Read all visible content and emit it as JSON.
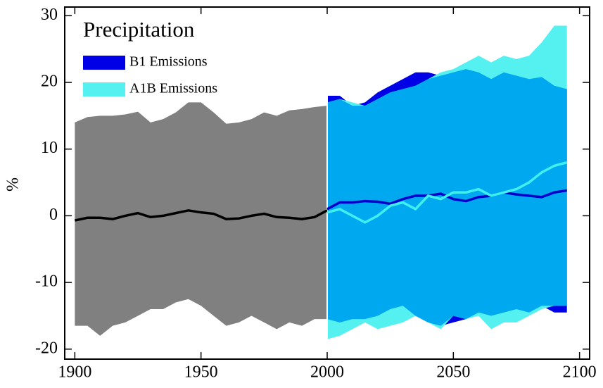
{
  "chart_data": {
    "type": "band",
    "title": "Precipitation",
    "y_label": "%",
    "xlim": [
      1896,
      2104
    ],
    "ylim": [
      -21.5,
      31.3
    ],
    "xticks": [
      1900,
      1950,
      2000,
      2050,
      2100
    ],
    "yticks": [
      -20,
      -10,
      0,
      10,
      20,
      30
    ],
    "overlap_color": "#00a8f0",
    "series": [
      {
        "color": "#808080",
        "line_color": "#000000",
        "x": [
          1900,
          1905,
          1910,
          1915,
          1920,
          1925,
          1930,
          1935,
          1940,
          1945,
          1950,
          1955,
          1960,
          1965,
          1970,
          1975,
          1980,
          1985,
          1990,
          1995,
          2000
        ],
        "upper": [
          14,
          14.8,
          15,
          15,
          15.2,
          15.6,
          14,
          14.5,
          15.5,
          17,
          17,
          15.5,
          13.8,
          14,
          14.5,
          15.5,
          15,
          15.8,
          16,
          16.3,
          16.5
        ],
        "lower": [
          -16.5,
          -16.5,
          -18,
          -16.5,
          -16,
          -15,
          -14,
          -14,
          -13,
          -12.5,
          -13.5,
          -15,
          -16.5,
          -16,
          -15,
          -16,
          -17,
          -16,
          -16.5,
          -15.5,
          -15.5
        ],
        "values": [
          -0.7,
          -0.3,
          -0.3,
          -0.5,
          0,
          0.4,
          -0.2,
          0,
          0.4,
          0.8,
          0.5,
          0.3,
          -0.5,
          -0.4,
          0,
          0.3,
          -0.2,
          -0.3,
          -0.5,
          -0.2,
          0.8
        ]
      },
      {
        "name": "B1 Emissions",
        "color": "#0000e6",
        "line_color": "#0000cc",
        "x": [
          2000,
          2005,
          2010,
          2015,
          2020,
          2025,
          2030,
          2035,
          2040,
          2045,
          2050,
          2055,
          2060,
          2065,
          2070,
          2075,
          2080,
          2085,
          2090,
          2095
        ],
        "upper": [
          18,
          18,
          16.5,
          17,
          18.5,
          19.5,
          20.5,
          21.5,
          21.5,
          21,
          21.5,
          22,
          21.5,
          20.5,
          21.5,
          21,
          20.5,
          20.8,
          19.5,
          19
        ],
        "lower": [
          -15.5,
          -16,
          -15.5,
          -15.5,
          -15,
          -14,
          -13.5,
          -15,
          -16,
          -16.5,
          -16,
          -15.5,
          -14.5,
          -15,
          -14.5,
          -14,
          -14.5,
          -13.5,
          -14.5,
          -14.5
        ],
        "values": [
          1,
          2,
          2,
          2.2,
          2.1,
          1.8,
          2.5,
          3,
          3,
          3.3,
          2.5,
          2.2,
          2.8,
          3,
          3.5,
          3.2,
          3,
          2.8,
          3.5,
          3.8
        ]
      },
      {
        "name": "A1B Emissions",
        "color": "#55f0f0",
        "line_color": "#40f0f0",
        "x": [
          2000,
          2005,
          2010,
          2015,
          2020,
          2025,
          2030,
          2035,
          2040,
          2045,
          2050,
          2055,
          2060,
          2065,
          2070,
          2075,
          2080,
          2085,
          2090,
          2095
        ],
        "upper": [
          17,
          17.5,
          17,
          16.5,
          17.5,
          18.5,
          19,
          19.5,
          20.5,
          21.5,
          22,
          23,
          24,
          23,
          24,
          23.5,
          24,
          26,
          28.5,
          28.5
        ],
        "lower": [
          -18.5,
          -18,
          -17,
          -16,
          -17,
          -16.5,
          -16,
          -15,
          -16,
          -17,
          -15,
          -15.5,
          -15,
          -17,
          -16,
          -16,
          -15,
          -14,
          -13.5,
          -13.5
        ],
        "values": [
          0.5,
          1,
          0,
          -1,
          0,
          1.5,
          2,
          1,
          3,
          2.5,
          3.5,
          3.5,
          4,
          3,
          3.5,
          4,
          5,
          6.5,
          7.5,
          8
        ]
      }
    ]
  }
}
